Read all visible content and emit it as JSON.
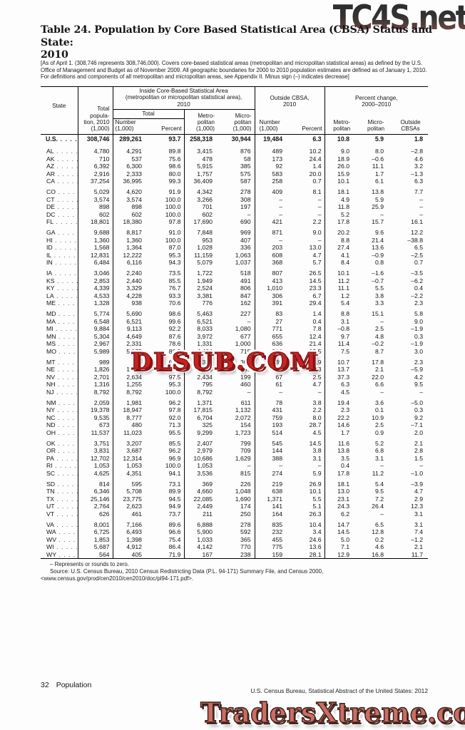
{
  "watermarks": {
    "top": "TC4S.net",
    "middle": "DLSUB.COM",
    "bottom": "TradersXtreme.com"
  },
  "title": {
    "line1": "Table 24. Population by Core Based Statistical Area (CBSA) Status and State:",
    "line2": "2010"
  },
  "note": "[As of April 1. (308,746 represents 308,746,000). Covers core-based statistical areas (metropolitan and micropolitan statistical areas) as defined by the U.S. Office of Management and Budget as of November 2009. All geographic boundaries for 2000 to 2010 population estimates are defined as of January 1, 2010. For definitions and components of all metropolitan and micropolitan areas, see Appendix II. Minus sign (–) indicates decrease]",
  "table": {
    "headers": {
      "state": "State",
      "total_pop": "Total\npopula-\ntion, 2010\n(1,000)",
      "inside_group": "Inside Core-Based Statistical Area\n(metropolitan or micropolitan statistical area),\n2010",
      "total": "Total",
      "number": "Number\n(1,000)",
      "percent": "Percent",
      "metro": "Metro-\npolitan\n(1,000)",
      "micro": "Micro-\npolitan\n(1,000)",
      "outside_group": "Outside CBSA,\n2010",
      "pct_change_group": "Percent change,\n2000–2010",
      "chg_metro": "Metro-\npolitan",
      "chg_micro": "Micro-\npolitan",
      "chg_out": "Outside\nCBSAs"
    },
    "us_row": {
      "state": "U.S.",
      "values": [
        "308,746",
        "289,261",
        "93.7",
        "258,318",
        "30,944",
        "19,484",
        "6.3",
        "10.8",
        "5.9",
        "1.8"
      ]
    },
    "rows": [
      {
        "state": "AL",
        "gap": true,
        "values": [
          "4,780",
          "4,291",
          "89.8",
          "3,415",
          "876",
          "489",
          "10.2",
          "9.0",
          "8.0",
          "–2.8"
        ]
      },
      {
        "state": "AK",
        "values": [
          "710",
          "537",
          "75.6",
          "478",
          "58",
          "173",
          "24.4",
          "18.9",
          "–0.6",
          "4.6"
        ]
      },
      {
        "state": "AZ",
        "values": [
          "6,392",
          "6,300",
          "98.6",
          "5,915",
          "385",
          "92",
          "1.4",
          "26.0",
          "11.1",
          "3.2"
        ]
      },
      {
        "state": "AR",
        "values": [
          "2,916",
          "2,333",
          "80.0",
          "1,757",
          "575",
          "583",
          "20.0",
          "15.9",
          "1.7",
          "–1.3"
        ]
      },
      {
        "state": "CA",
        "values": [
          "37,254",
          "36,995",
          "99.3",
          "36,409",
          "587",
          "258",
          "0.7",
          "10.1",
          "6.1",
          "6.3"
        ]
      },
      {
        "state": "CO",
        "gap": true,
        "values": [
          "5,029",
          "4,620",
          "91.9",
          "4,342",
          "278",
          "409",
          "8.1",
          "18.1",
          "13.8",
          "7.7"
        ]
      },
      {
        "state": "CT",
        "values": [
          "3,574",
          "3,574",
          "100.0",
          "3,266",
          "308",
          "–",
          "–",
          "4.9",
          "5.9",
          "–"
        ]
      },
      {
        "state": "DE",
        "values": [
          "898",
          "898",
          "100.0",
          "701",
          "197",
          "–",
          "–",
          "11.8",
          "25.9",
          "–"
        ]
      },
      {
        "state": "DC",
        "values": [
          "602",
          "602",
          "100.0",
          "602",
          "–",
          "–",
          "–",
          "5.2",
          "–",
          "–"
        ]
      },
      {
        "state": "FL",
        "values": [
          "18,801",
          "18,380",
          "97.8",
          "17,690",
          "690",
          "421",
          "2.2",
          "17.8",
          "15.7",
          "16.1"
        ]
      },
      {
        "state": "GA",
        "gap": true,
        "values": [
          "9,688",
          "8,817",
          "91.0",
          "7,848",
          "969",
          "871",
          "9.0",
          "20.2",
          "9.6",
          "12.2"
        ]
      },
      {
        "state": "HI",
        "values": [
          "1,360",
          "1,360",
          "100.0",
          "953",
          "407",
          "–",
          "–",
          "8.8",
          "21.4",
          "–38.8"
        ]
      },
      {
        "state": "ID",
        "values": [
          "1,568",
          "1,364",
          "87.0",
          "1,028",
          "336",
          "203",
          "13.0",
          "27.4",
          "13.6",
          "6.5"
        ]
      },
      {
        "state": "IL",
        "values": [
          "12,831",
          "12,222",
          "95.3",
          "11,159",
          "1,063",
          "608",
          "4.7",
          "4.1",
          "–0.9",
          "–2.5"
        ]
      },
      {
        "state": "IN",
        "values": [
          "6,484",
          "6,116",
          "94.3",
          "5,079",
          "1,037",
          "368",
          "5.7",
          "8.4",
          "0.8",
          "0.7"
        ]
      },
      {
        "state": "IA",
        "gap": true,
        "values": [
          "3,046",
          "2,240",
          "73.5",
          "1,722",
          "518",
          "807",
          "26.5",
          "10.1",
          "–1.6",
          "–3.5"
        ]
      },
      {
        "state": "KS",
        "values": [
          "2,853",
          "2,440",
          "85.5",
          "1,949",
          "491",
          "413",
          "14.5",
          "11.2",
          "–0.7",
          "–6.2"
        ]
      },
      {
        "state": "KY",
        "values": [
          "4,339",
          "3,329",
          "76.7",
          "2,524",
          "806",
          "1,010",
          "23.3",
          "11.1",
          "5.5",
          "0.4"
        ]
      },
      {
        "state": "LA",
        "values": [
          "4,533",
          "4,228",
          "93.3",
          "3,381",
          "847",
          "306",
          "6.7",
          "1.2",
          "3.8",
          "–2.2"
        ]
      },
      {
        "state": "ME",
        "values": [
          "1,328",
          "938",
          "70.6",
          "776",
          "162",
          "391",
          "29.4",
          "5.4",
          "3.3",
          "2.3"
        ]
      },
      {
        "state": "MD",
        "gap": true,
        "values": [
          "5,774",
          "5,690",
          "98.6",
          "5,463",
          "227",
          "83",
          "1.4",
          "8.8",
          "15.1",
          "5.8"
        ]
      },
      {
        "state": "MA",
        "values": [
          "6,548",
          "6,521",
          "99.6",
          "6,521",
          "–",
          "27",
          "0.4",
          "3.1",
          "–",
          "9.0"
        ]
      },
      {
        "state": "MI",
        "values": [
          "9,884",
          "9,113",
          "92.2",
          "8,033",
          "1,080",
          "771",
          "7.8",
          "–0.8",
          "2.5",
          "–1.9"
        ]
      },
      {
        "state": "MN",
        "values": [
          "5,304",
          "4,649",
          "87.6",
          "3,972",
          "677",
          "655",
          "12.4",
          "9.7",
          "4.8",
          "0.3"
        ]
      },
      {
        "state": "MS",
        "values": [
          "2,967",
          "2,331",
          "78.6",
          "1,331",
          "1,000",
          "636",
          "21.4",
          "11.4",
          "–0.2",
          "–1.9"
        ]
      },
      {
        "state": "MO",
        "values": [
          "5,989",
          "5,179",
          "86.5",
          "4,464",
          "715",
          "810",
          "13.5",
          "7.5",
          "8.7",
          "3.0"
        ]
      },
      {
        "state": "MT",
        "gap": true,
        "values": [
          "989",
          "654",
          "66.1",
          "349",
          "306",
          "335",
          "33.9",
          "10.7",
          "17.8",
          "2.3"
        ]
      },
      {
        "state": "NE",
        "values": [
          "1,826",
          "1,473",
          "80.7",
          "1,178",
          "295",
          "353",
          "19.3",
          "13.7",
          "2.1",
          "–5.9"
        ]
      },
      {
        "state": "NV",
        "values": [
          "2,701",
          "2,634",
          "97.5",
          "2,434",
          "199",
          "67",
          "2.5",
          "37.3",
          "22.0",
          "4.2"
        ]
      },
      {
        "state": "NH",
        "values": [
          "1,316",
          "1,255",
          "95.3",
          "795",
          "460",
          "61",
          "4.7",
          "6.3",
          "6.6",
          "9.5"
        ]
      },
      {
        "state": "NJ",
        "values": [
          "8,792",
          "8,792",
          "100.0",
          "8,792",
          "–",
          "–",
          "–",
          "4.5",
          "–",
          "–"
        ]
      },
      {
        "state": "NM",
        "gap": true,
        "values": [
          "2,059",
          "1,981",
          "96.2",
          "1,371",
          "611",
          "78",
          "3.8",
          "19.4",
          "3.6",
          "–5.0"
        ]
      },
      {
        "state": "NY",
        "values": [
          "19,378",
          "18,947",
          "97.8",
          "17,815",
          "1,132",
          "431",
          "2.2",
          "2.3",
          "0.1",
          "0.3"
        ]
      },
      {
        "state": "NC",
        "values": [
          "9,535",
          "8,777",
          "92.0",
          "6,704",
          "2,072",
          "759",
          "8.0",
          "22.2",
          "10.9",
          "9.2"
        ]
      },
      {
        "state": "ND",
        "values": [
          "673",
          "480",
          "71.3",
          "325",
          "154",
          "193",
          "28.7",
          "14.6",
          "2.5",
          "–7.1"
        ]
      },
      {
        "state": "OH",
        "values": [
          "11,537",
          "11,023",
          "95.5",
          "9,299",
          "1,723",
          "514",
          "4.5",
          "1.7",
          "0.9",
          "2.0"
        ]
      },
      {
        "state": "OK",
        "gap": true,
        "values": [
          "3,751",
          "3,207",
          "85.5",
          "2,407",
          "799",
          "545",
          "14.5",
          "11.6",
          "5.2",
          "2.1"
        ]
      },
      {
        "state": "OR",
        "values": [
          "3,831",
          "3,687",
          "96.2",
          "2,979",
          "709",
          "144",
          "3.8",
          "13.8",
          "6.8",
          "2.8"
        ]
      },
      {
        "state": "PA",
        "values": [
          "12,702",
          "12,314",
          "96.9",
          "10,686",
          "1,629",
          "388",
          "3.1",
          "3.5",
          "3.1",
          "1.5"
        ]
      },
      {
        "state": "RI",
        "values": [
          "1,053",
          "1,053",
          "100.0",
          "1,053",
          "–",
          "–",
          "–",
          "0.4",
          "–",
          "–"
        ]
      },
      {
        "state": "SC",
        "values": [
          "4,625",
          "4,351",
          "94.1",
          "3,536",
          "815",
          "274",
          "5.9",
          "17.8",
          "11.2",
          "–1.0"
        ]
      },
      {
        "state": "SD",
        "gap": true,
        "values": [
          "814",
          "595",
          "73.1",
          "369",
          "226",
          "219",
          "26.9",
          "18.1",
          "5.4",
          "–3.9"
        ]
      },
      {
        "state": "TN",
        "values": [
          "6,346",
          "5,708",
          "89.9",
          "4,660",
          "1,048",
          "638",
          "10.1",
          "13.0",
          "9.5",
          "4.7"
        ]
      },
      {
        "state": "TX",
        "values": [
          "25,146",
          "23,775",
          "94.5",
          "22,085",
          "1,690",
          "1,371",
          "5.5",
          "23.1",
          "7.2",
          "2.9"
        ]
      },
      {
        "state": "UT",
        "values": [
          "2,764",
          "2,623",
          "94.9",
          "2,449",
          "174",
          "141",
          "5.1",
          "24.3",
          "26.4",
          "12.3"
        ]
      },
      {
        "state": "VT",
        "values": [
          "626",
          "461",
          "73.7",
          "211",
          "250",
          "164",
          "26.3",
          "6.2",
          "–",
          "3.1"
        ]
      },
      {
        "state": "VA",
        "gap": true,
        "values": [
          "8,001",
          "7,166",
          "89.6",
          "6,888",
          "278",
          "835",
          "10.4",
          "14.7",
          "6.5",
          "3.1"
        ]
      },
      {
        "state": "WA",
        "values": [
          "6,725",
          "6,493",
          "96.6",
          "5,900",
          "592",
          "232",
          "3.4",
          "14.5",
          "12.8",
          "7.4"
        ]
      },
      {
        "state": "WV",
        "values": [
          "1,853",
          "1,398",
          "75.4",
          "1,033",
          "365",
          "455",
          "24.6",
          "5.0",
          "0.2",
          "–1.2"
        ]
      },
      {
        "state": "WI",
        "values": [
          "5,687",
          "4,912",
          "86.4",
          "4,142",
          "770",
          "775",
          "13.6",
          "7.1",
          "4.6",
          "2.1"
        ]
      },
      {
        "state": "WY",
        "values": [
          "564",
          "405",
          "71.9",
          "167",
          "238",
          "159",
          "28.1",
          "12.9",
          "16.8",
          "11.7"
        ]
      }
    ]
  },
  "footnotes": {
    "dash_note": "– Represents or rounds to zero.",
    "source_line1": "Source: U.S. Census Bureau, 2010 Census Redistricting Data (P.L. 94-171) Summary File, and Census 2000,",
    "source_line2": "<www.census.gov/prod/cen2010/cen2010/doc/pl94-171.pdf>."
  },
  "footer": {
    "page_number": "32",
    "section": "Population",
    "imprint": "U.S. Census Bureau, Statistical Abstract of the United States: 2012"
  }
}
